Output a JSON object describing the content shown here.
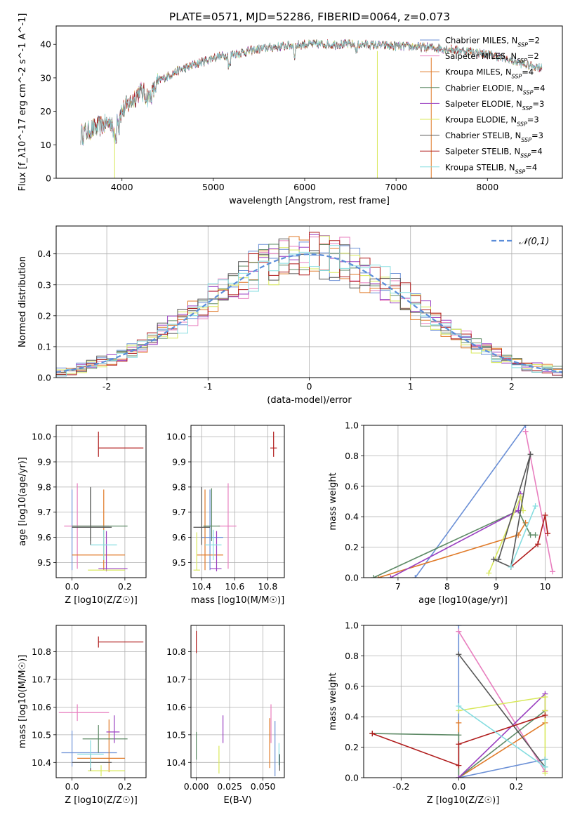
{
  "figure": {
    "title": "PLATE=0571, MJD=52286, FIBERID=0064, z=0.073"
  },
  "colors": {
    "Chabrier MILES": "#6a8fd6",
    "Salpeter MILES": "#e87fbf",
    "Kroupa MILES": "#e07a28",
    "Chabrier ELODIE": "#5e8a66",
    "Salpeter ELODIE": "#9a3fc0",
    "Kroupa ELODIE": "#d8e85a",
    "Chabrier STELIB": "#555555",
    "Salpeter STELIB": "#b01c1c",
    "Kroupa STELIB": "#86dde0"
  },
  "chart_data": [
    {
      "id": "spectrum",
      "type": "line",
      "xlabel": "wavelength [Angstrom, rest frame]",
      "ylabel": "Flux [f_λ10^-17 erg cm^-2 s^-1 A^-1]",
      "xlim": [
        3280,
        8820
      ],
      "ylim": [
        0,
        45.5
      ],
      "xticks": [
        4000,
        5000,
        6000,
        7000,
        8000
      ],
      "yticks": [
        0,
        10,
        20,
        30,
        40
      ],
      "grid": false,
      "legend_position": "right",
      "series": [
        {
          "name": "Chabrier MILES, N_SSP=2"
        },
        {
          "name": "Salpeter MILES, N_SSP=2"
        },
        {
          "name": "Kroupa MILES, N_SSP=4"
        },
        {
          "name": "Chabrier ELODIE, N_SSP=4"
        },
        {
          "name": "Salpeter ELODIE, N_SSP=3"
        },
        {
          "name": "Kroupa ELODIE, N_SSP=3"
        },
        {
          "name": "Chabrier STELIB, N_SSP=3"
        },
        {
          "name": "Salpeter STELIB, N_SSP=4"
        },
        {
          "name": "Kroupa STELIB, N_SSP=4"
        }
      ],
      "continuum": {
        "x": [
          3550,
          3700,
          3900,
          4000,
          4100,
          4200,
          4300,
          4400,
          4600,
          4800,
          5000,
          5200,
          5400,
          5600,
          5800,
          6000,
          6300,
          6600,
          7000,
          7400,
          7800,
          8100,
          8400,
          8600
        ],
        "y": [
          13,
          15,
          17,
          20,
          23,
          26,
          24,
          29,
          32,
          34,
          36,
          37,
          38,
          39,
          39.5,
          40,
          40,
          40,
          39.5,
          39,
          38,
          36.5,
          34,
          33
        ]
      }
    },
    {
      "id": "residuals",
      "type": "line",
      "xlabel": "(data-model)/error",
      "ylabel": "Normed distribution",
      "xlim": [
        -2.5,
        2.5
      ],
      "ylim": [
        0,
        0.49
      ],
      "xticks": [
        -2,
        -1,
        0,
        1,
        2
      ],
      "yticks": [
        0.0,
        0.1,
        0.2,
        0.3,
        0.4
      ],
      "grid": true,
      "legend_position": "top-right",
      "normal_label": "𝒩(0,1)",
      "normal_color": "#5b8dd9"
    },
    {
      "id": "age_vs_Z",
      "type": "scatter",
      "xlabel": "Z [log10(Z/Z☉)]",
      "ylabel": "age  [log10(age/yr)]",
      "xlim": [
        -0.06,
        0.28
      ],
      "ylim": [
        9.44,
        10.045
      ],
      "xticks": [
        0.0,
        0.2
      ],
      "yticks": [
        9.5,
        9.6,
        9.7,
        9.8,
        9.9,
        10.0
      ],
      "grid": true,
      "points": [
        {
          "model": "Salpeter STELIB",
          "x": 0.1,
          "y": 9.955,
          "xerr": [
            0.0,
            0.17
          ],
          "yerr": [
            0.035,
            0.065
          ]
        },
        {
          "model": "Chabrier MILES",
          "x": 0.0,
          "y": 9.6,
          "xerr": [
            0.0,
            0.0
          ],
          "yerr": [
            0.13,
            0.19
          ]
        },
        {
          "model": "Salpeter MILES",
          "x": 0.02,
          "y": 9.645,
          "xerr": [
            0.05,
            0.12
          ],
          "yerr": [
            0.17,
            0.17
          ]
        },
        {
          "model": "Kroupa MILES",
          "x": 0.12,
          "y": 9.53,
          "xerr": [
            0.12,
            0.08
          ],
          "yerr": [
            0.06,
            0.26
          ]
        },
        {
          "model": "Chabrier ELODIE",
          "x": 0.07,
          "y": 9.645,
          "xerr": [
            0.07,
            0.14
          ],
          "yerr": [
            0.06,
            0.15
          ]
        },
        {
          "model": "Salpeter ELODIE",
          "x": 0.13,
          "y": 9.475,
          "xerr": [
            0.03,
            0.08
          ],
          "yerr": [
            0.01,
            0.15
          ]
        },
        {
          "model": "Kroupa ELODIE",
          "x": 0.13,
          "y": 9.47,
          "xerr": [
            0.07,
            0.07
          ],
          "yerr": [
            0.0,
            0.0
          ]
        },
        {
          "model": "Chabrier STELIB",
          "x": 0.07,
          "y": 9.64,
          "xerr": [
            0.07,
            0.08
          ],
          "yerr": [
            0.07,
            0.16
          ]
        },
        {
          "model": "Kroupa STELIB",
          "x": 0.12,
          "y": 9.57,
          "xerr": [
            0.05,
            0.05
          ],
          "yerr": [
            0.06,
            0.06
          ]
        }
      ]
    },
    {
      "id": "age_vs_mass",
      "type": "scatter",
      "xlabel": "mass [log10(M/M☉)]",
      "ylabel": "",
      "xlim": [
        10.335,
        10.9
      ],
      "ylim": [
        9.44,
        10.045
      ],
      "xticks": [
        10.4,
        10.6,
        10.8
      ],
      "yticks": [
        9.5,
        9.6,
        9.7,
        9.8,
        9.9,
        10.0
      ],
      "grid": true,
      "points": [
        {
          "model": "Salpeter STELIB",
          "x": 10.835,
          "y": 9.955,
          "xerr": [
            0.02,
            0.02
          ],
          "yerr": [
            0.035,
            0.065
          ]
        },
        {
          "model": "Chabrier MILES",
          "x": 10.45,
          "y": 9.6,
          "xerr": [
            0.05,
            0.08
          ],
          "yerr": [
            0.13,
            0.19
          ]
        },
        {
          "model": "Salpeter MILES",
          "x": 10.56,
          "y": 9.645,
          "xerr": [
            0.06,
            0.05
          ],
          "yerr": [
            0.17,
            0.17
          ]
        },
        {
          "model": "Kroupa MILES",
          "x": 10.42,
          "y": 9.53,
          "xerr": [
            0.05,
            0.11
          ],
          "yerr": [
            0.06,
            0.26
          ]
        },
        {
          "model": "Chabrier ELODIE",
          "x": 10.46,
          "y": 9.645,
          "xerr": [
            0.05,
            0.05
          ],
          "yerr": [
            0.06,
            0.15
          ]
        },
        {
          "model": "Salpeter ELODIE",
          "x": 10.49,
          "y": 9.475,
          "xerr": [
            0.04,
            0.03
          ],
          "yerr": [
            0.01,
            0.15
          ]
        },
        {
          "model": "Kroupa ELODIE",
          "x": 10.37,
          "y": 9.47,
          "xerr": [
            0.02,
            0.02
          ],
          "yerr": [
            0.0,
            0.15
          ]
        },
        {
          "model": "Chabrier STELIB",
          "x": 10.4,
          "y": 9.64,
          "xerr": [
            0.05,
            0.05
          ],
          "yerr": [
            0.07,
            0.16
          ]
        },
        {
          "model": "Kroupa STELIB",
          "x": 10.47,
          "y": 9.57,
          "xerr": [
            0.05,
            0.05
          ],
          "yerr": [
            0.06,
            0.06
          ]
        }
      ]
    },
    {
      "id": "weight_vs_age",
      "type": "line",
      "xlabel": "age  [log10(age/yr)]",
      "ylabel": "mass weight",
      "xlim": [
        6.3,
        10.35
      ],
      "ylim": [
        0,
        1.0
      ],
      "xticks": [
        7,
        8,
        9,
        10
      ],
      "yticks": [
        0.0,
        0.2,
        0.4,
        0.6,
        0.8,
        1.0
      ],
      "grid": true,
      "series": [
        {
          "model": "Chabrier MILES",
          "x": [
            7.35,
            9.6
          ],
          "y": [
            0.0,
            1.0
          ]
        },
        {
          "model": "Salpeter MILES",
          "x": [
            9.6,
            10.15
          ],
          "y": [
            0.96,
            0.04
          ]
        },
        {
          "model": "Kroupa MILES",
          "x": [
            6.6,
            9.45,
            9.6
          ],
          "y": [
            0.0,
            0.28,
            0.36
          ]
        },
        {
          "model": "Chabrier ELODIE",
          "x": [
            6.5,
            9.45,
            9.7,
            9.8
          ],
          "y": [
            0.0,
            0.44,
            0.28,
            0.28
          ]
        },
        {
          "model": "Salpeter ELODIE",
          "x": [
            6.85,
            9.45,
            9.5
          ],
          "y": [
            0.0,
            0.44,
            0.55
          ]
        },
        {
          "model": "Kroupa ELODIE",
          "x": [
            8.85,
            9.5,
            9.55
          ],
          "y": [
            0.03,
            0.53,
            0.44
          ]
        },
        {
          "model": "Chabrier STELIB",
          "x": [
            8.95,
            9.3,
            9.7,
            9.05
          ],
          "y": [
            0.12,
            0.07,
            0.81,
            0.12
          ]
        },
        {
          "model": "Salpeter STELIB",
          "x": [
            9.3,
            9.85,
            10.0,
            10.05
          ],
          "y": [
            0.07,
            0.22,
            0.41,
            0.29
          ]
        },
        {
          "model": "Kroupa STELIB",
          "x": [
            9.3,
            9.8
          ],
          "y": [
            0.07,
            0.47
          ]
        }
      ]
    },
    {
      "id": "mass_vs_Z",
      "type": "scatter",
      "xlabel": "Z [log10(Z/Z☉)]",
      "ylabel": "mass [log10(M/M☉)]",
      "xlim": [
        -0.06,
        0.28
      ],
      "ylim": [
        10.345,
        10.895
      ],
      "xticks": [
        0.0,
        0.2
      ],
      "yticks": [
        10.4,
        10.5,
        10.6,
        10.7,
        10.8
      ],
      "grid": true,
      "points": [
        {
          "model": "Salpeter STELIB",
          "x": 0.1,
          "y": 10.835,
          "xerr": [
            0.0,
            0.17
          ],
          "yerr": [
            0.02,
            0.02
          ]
        },
        {
          "model": "Chabrier MILES",
          "x": 0.0,
          "y": 10.435,
          "xerr": [
            0.04,
            0.17
          ],
          "yerr": [
            0.05,
            0.08
          ]
        },
        {
          "model": "Salpeter MILES",
          "x": 0.02,
          "y": 10.58,
          "xerr": [
            0.07,
            0.12
          ],
          "yerr": [
            0.03,
            0.03
          ]
        },
        {
          "model": "Kroupa MILES",
          "x": 0.14,
          "y": 10.415,
          "xerr": [
            0.12,
            0.06
          ],
          "yerr": [
            0.05,
            0.14
          ]
        },
        {
          "model": "Chabrier ELODIE",
          "x": 0.1,
          "y": 10.485,
          "xerr": [
            0.06,
            0.11
          ],
          "yerr": [
            0.05,
            0.05
          ]
        },
        {
          "model": "Salpeter ELODIE",
          "x": 0.16,
          "y": 10.51,
          "xerr": [
            0.03,
            0.02
          ],
          "yerr": [
            0.04,
            0.06
          ]
        },
        {
          "model": "Kroupa ELODIE",
          "x": 0.11,
          "y": 10.37,
          "xerr": [
            0.05,
            0.09
          ],
          "yerr": [
            0.02,
            0.02
          ]
        },
        {
          "model": "Chabrier STELIB",
          "x": 0.07,
          "y": 10.4,
          "xerr": [
            0.07,
            0.08
          ],
          "yerr": [
            0.03,
            0.03
          ]
        },
        {
          "model": "Kroupa STELIB",
          "x": 0.07,
          "y": 10.43,
          "xerr": [
            0.05,
            0.05
          ],
          "yerr": [
            0.05,
            0.05
          ]
        }
      ]
    },
    {
      "id": "mass_vs_EBV",
      "type": "scatter",
      "xlabel": "E(B-V)",
      "ylabel": "",
      "xlim": [
        -0.004,
        0.066
      ],
      "ylim": [
        10.345,
        10.895
      ],
      "xticks": [
        0.0,
        0.025,
        0.05
      ],
      "yticks": [
        10.4,
        10.5,
        10.6,
        10.7,
        10.8
      ],
      "grid": true,
      "points": [
        {
          "model": "Salpeter STELIB",
          "x": 0.0,
          "y": 10.835,
          "xerr": [
            0,
            0
          ],
          "yerr": [
            0.04,
            0.04
          ]
        },
        {
          "model": "Chabrier ELODIE",
          "x": 0.0,
          "y": 10.46,
          "xerr": [
            0,
            0
          ],
          "yerr": [
            0.05,
            0.05
          ]
        },
        {
          "model": "Salpeter ELODIE",
          "x": 0.02,
          "y": 10.52,
          "xerr": [
            0,
            0
          ],
          "yerr": [
            0.05,
            0.05
          ]
        },
        {
          "model": "Kroupa ELODIE",
          "x": 0.017,
          "y": 10.41,
          "xerr": [
            0,
            0
          ],
          "yerr": [
            0.05,
            0.05
          ]
        },
        {
          "model": "Salpeter MILES",
          "x": 0.056,
          "y": 10.54,
          "xerr": [
            0,
            0
          ],
          "yerr": [
            0.07,
            0.07
          ]
        },
        {
          "model": "Kroupa MILES",
          "x": 0.055,
          "y": 10.47,
          "xerr": [
            0,
            0
          ],
          "yerr": [
            0.09,
            0.09
          ]
        },
        {
          "model": "Chabrier MILES",
          "x": 0.059,
          "y": 10.45,
          "xerr": [
            0,
            0
          ],
          "yerr": [
            0.1,
            0.1
          ]
        },
        {
          "model": "Kroupa STELIB",
          "x": 0.062,
          "y": 10.43,
          "xerr": [
            0,
            0
          ],
          "yerr": [
            0.04,
            0.04
          ]
        },
        {
          "model": "Chabrier STELIB",
          "x": 0.0625,
          "y": 10.4,
          "xerr": [
            0,
            0
          ],
          "yerr": [
            0.03,
            0.03
          ]
        }
      ]
    },
    {
      "id": "weight_vs_Z",
      "type": "line",
      "xlabel": "Z [log10(Z/Z☉)]",
      "ylabel": "mass weight",
      "xlim": [
        -0.33,
        0.36
      ],
      "ylim": [
        0,
        1.0
      ],
      "xticks": [
        -0.2,
        0.0,
        0.2
      ],
      "yticks": [
        0.0,
        0.2,
        0.4,
        0.6,
        0.8,
        1.0
      ],
      "grid": true,
      "series": [
        {
          "model": "Chabrier MILES",
          "x": [
            0.0,
            0.0,
            0.3
          ],
          "y": [
            1.0,
            0.0,
            0.12
          ]
        },
        {
          "model": "Salpeter MILES",
          "x": [
            0.0,
            0.3
          ],
          "y": [
            0.96,
            0.04
          ]
        },
        {
          "model": "Kroupa MILES",
          "x": [
            0.0,
            0.0,
            0.3
          ],
          "y": [
            0.36,
            0.0,
            0.36
          ]
        },
        {
          "model": "Chabrier ELODIE",
          "x": [
            -0.3,
            0.0,
            0.0,
            0.3
          ],
          "y": [
            0.29,
            0.28,
            0.0,
            0.44
          ]
        },
        {
          "model": "Salpeter ELODIE",
          "x": [
            0.0,
            0.3,
            0.3
          ],
          "y": [
            0.0,
            0.55,
            0.44
          ]
        },
        {
          "model": "Kroupa ELODIE",
          "x": [
            0.0,
            0.3,
            0.3,
            0.3
          ],
          "y": [
            0.44,
            0.53,
            0.03,
            0.44
          ]
        },
        {
          "model": "Chabrier STELIB",
          "x": [
            0.0,
            0.3,
            0.3
          ],
          "y": [
            0.81,
            0.07,
            0.12
          ]
        },
        {
          "model": "Salpeter STELIB",
          "x": [
            -0.3,
            0.0,
            0.0,
            0.3
          ],
          "y": [
            0.29,
            0.08,
            0.22,
            0.41
          ]
        },
        {
          "model": "Kroupa STELIB",
          "x": [
            0.0,
            0.3,
            0.3
          ],
          "y": [
            0.47,
            0.07,
            0.12
          ]
        }
      ]
    }
  ]
}
